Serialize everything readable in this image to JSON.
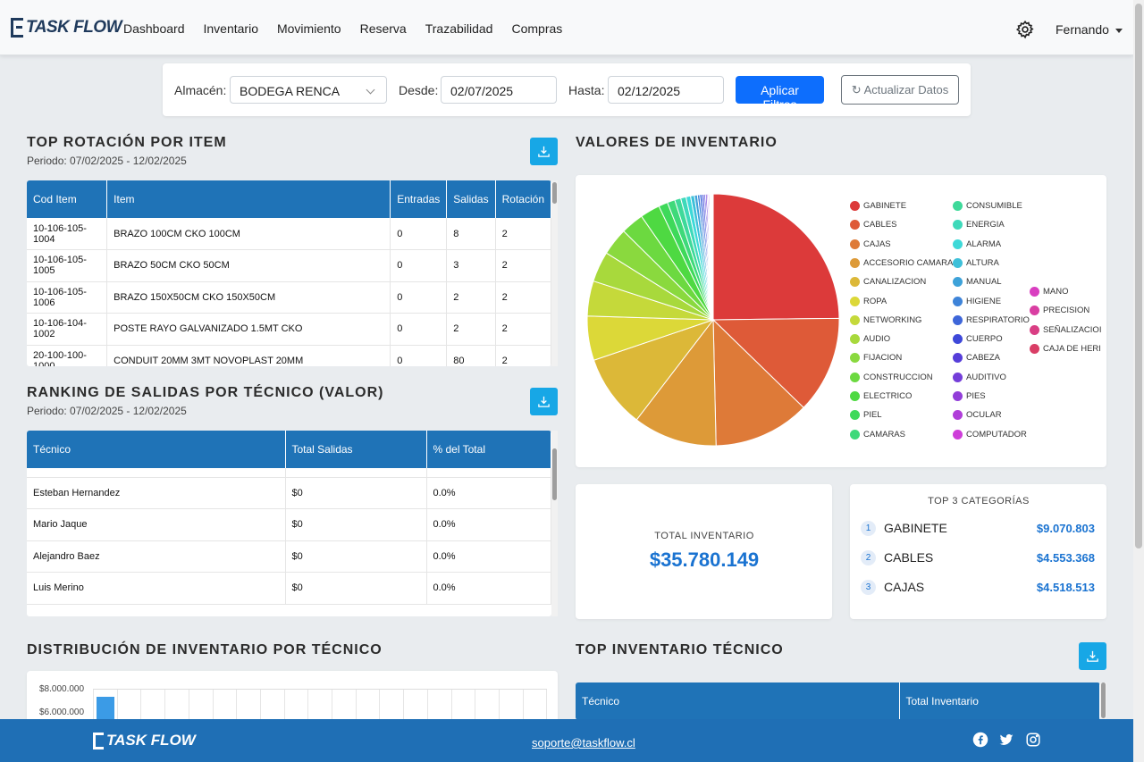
{
  "brand": "TASK FLOW",
  "nav": [
    "Dashboard",
    "Inventario",
    "Movimiento",
    "Reserva",
    "Trazabilidad",
    "Compras"
  ],
  "user": "Fernando",
  "filters": {
    "almacen_label": "Almacén:",
    "almacen_value": "BODEGA RENCA",
    "desde_label": "Desde:",
    "desde_value": "02/07/2025",
    "hasta_label": "Hasta:",
    "hasta_value": "02/12/2025",
    "apply_label": "Aplicar Filtros",
    "refresh_label": "Actualizar Datos"
  },
  "top_rotation": {
    "title": "TOP ROTACIÓN POR ITEM",
    "period": "Periodo: 07/02/2025 - 12/02/2025",
    "headers": [
      "Cod Item",
      "Item",
      "Entradas",
      "Salidas",
      "Rotación"
    ],
    "rows": [
      [
        "10-106-105-1004",
        "BRAZO 100CM CKO 100CM",
        "0",
        "8",
        "2"
      ],
      [
        "10-106-105-1005",
        "BRAZO 50CM CKO 50CM",
        "0",
        "3",
        "2"
      ],
      [
        "10-106-105-1006",
        "BRAZO 150X50CM CKO 150X50CM",
        "0",
        "2",
        "2"
      ],
      [
        "10-106-104-1002",
        "POSTE RAYO GALVANIZADO 1.5MT CKO",
        "0",
        "2",
        "2"
      ],
      [
        "20-100-100-1000",
        "CONDUIT 20MM 3MT NOVOPLAST 20MM",
        "0",
        "80",
        "2"
      ]
    ]
  },
  "ranking": {
    "title": "RANKING DE SALIDAS POR TÉCNICO (VALOR)",
    "period": "Periodo: 07/02/2025 - 12/02/2025",
    "headers": [
      "Técnico",
      "Total Salidas",
      "% del Total"
    ],
    "rows": [
      [
        "Esteban Hernandez",
        "$0",
        "0.0%"
      ],
      [
        "Mario Jaque",
        "$0",
        "0.0%"
      ],
      [
        "Alejandro Baez",
        "$0",
        "0.0%"
      ],
      [
        "Luis Merino",
        "$0",
        "0.0%"
      ]
    ]
  },
  "valores": {
    "title": "VALORES DE INVENTARIO",
    "legend": [
      {
        "name": "GABINETE",
        "color": "#dc3a3a"
      },
      {
        "name": "CABLES",
        "color": "#de5a38"
      },
      {
        "name": "CAJAS",
        "color": "#de7a38"
      },
      {
        "name": "ACCESORIO CAMARA",
        "color": "#dd9a38"
      },
      {
        "name": "CANALIZACION",
        "color": "#dcb838"
      },
      {
        "name": "ROPA",
        "color": "#dcd838"
      },
      {
        "name": "NETWORKING",
        "color": "#c5d93a"
      },
      {
        "name": "AUDIO",
        "color": "#a8d93c"
      },
      {
        "name": "FIJACION",
        "color": "#8ad93e"
      },
      {
        "name": "CONSTRUCCION",
        "color": "#6cd940"
      },
      {
        "name": "ELECTRICO",
        "color": "#4ed942"
      },
      {
        "name": "PIEL",
        "color": "#3ed95a"
      },
      {
        "name": "CAMARAS",
        "color": "#3ed97a"
      },
      {
        "name": "CONSUMIBLE",
        "color": "#3ed99a"
      },
      {
        "name": "ENERGIA",
        "color": "#3ed9ba"
      },
      {
        "name": "ALARMA",
        "color": "#3ed9d8"
      },
      {
        "name": "ALTURA",
        "color": "#3ec0d9"
      },
      {
        "name": "MANUAL",
        "color": "#3ea2d9"
      },
      {
        "name": "HIGIENE",
        "color": "#3e84d9"
      },
      {
        "name": "RESPIRATORIO",
        "color": "#3e66d9"
      },
      {
        "name": "CUERPO",
        "color": "#3e48d9"
      },
      {
        "name": "CABEZA",
        "color": "#563ed9"
      },
      {
        "name": "AUDITIVO",
        "color": "#743ed9"
      },
      {
        "name": "PIES",
        "color": "#923ed9"
      },
      {
        "name": "OCULAR",
        "color": "#b03ed9"
      },
      {
        "name": "COMPUTADOR",
        "color": "#ce3ed9"
      },
      {
        "name": "MANO",
        "color": "#d93ec0"
      },
      {
        "name": "PRECISION",
        "color": "#d93ea2"
      },
      {
        "name": "SEÑALIZACIOI",
        "color": "#d93e84"
      },
      {
        "name": "CAJA DE HERI",
        "color": "#d93e66"
      }
    ],
    "slices": [
      25.35,
      12.73,
      12.63,
      11.0,
      9.6,
      5.8,
      4.6,
      4.0,
      3.6,
      3.0,
      2.6,
      1.2,
      1.0,
      0.8,
      0.7,
      0.6,
      0.5,
      0.4,
      0.3,
      0.3,
      0.25,
      0.2,
      0.2,
      0.15,
      0.15,
      0.1,
      0.1,
      0.1,
      0.1,
      0.1
    ]
  },
  "total_inventario": {
    "label": "TOTAL INVENTARIO",
    "value": "$35.780.149"
  },
  "top3": {
    "title": "TOP 3 CATEGORÍAS",
    "items": [
      {
        "rank": "1",
        "name": "GABINETE",
        "value": "$9.070.803"
      },
      {
        "rank": "2",
        "name": "CABLES",
        "value": "$4.553.368"
      },
      {
        "rank": "3",
        "name": "CAJAS",
        "value": "$4.518.513"
      }
    ]
  },
  "distribucion": {
    "title": "DISTRIBUCIÓN DE INVENTARIO POR TÉCNICO",
    "ticks": [
      "$8.000.000",
      "$6.000.000"
    ]
  },
  "top_inv_tecnico": {
    "title": "TOP INVENTARIO TÉCNICO",
    "headers": [
      "Técnico",
      "Total Inventario"
    ]
  },
  "footer": {
    "brand": "TASK FLOW",
    "email": "soporte@taskflow.cl"
  }
}
